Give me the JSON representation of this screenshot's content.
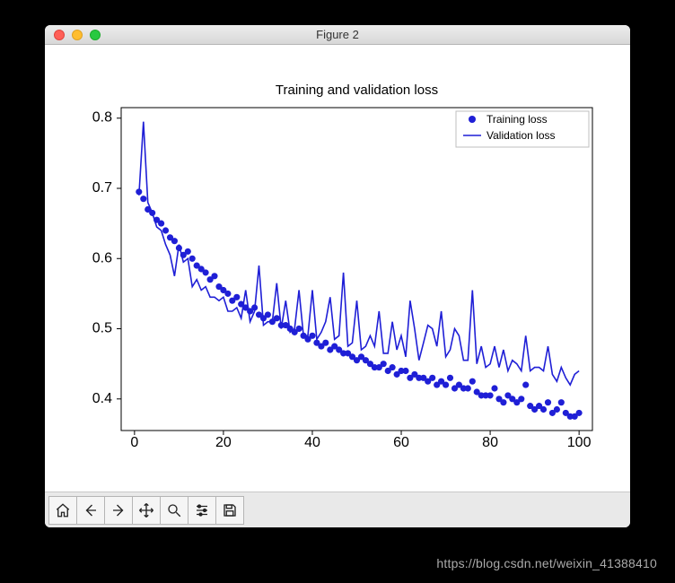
{
  "window": {
    "title": "Figure 2"
  },
  "watermark": "https://blog.csdn.net/weixin_41388410",
  "toolbar": {
    "buttons": [
      "home",
      "back",
      "forward",
      "pan",
      "zoom",
      "configure",
      "save"
    ]
  },
  "chart": {
    "type": "line+scatter",
    "title": "Training and validation loss",
    "title_fontsize": 15,
    "background_color": "#ffffff",
    "axes_color": "#000000",
    "label_fontsize": 11,
    "x": {
      "lim": [
        -3,
        103
      ],
      "ticks": [
        0,
        20,
        40,
        60,
        80,
        100
      ],
      "label": ""
    },
    "y": {
      "lim": [
        0.355,
        0.815
      ],
      "ticks": [
        0.4,
        0.5,
        0.6,
        0.7,
        0.8
      ],
      "label": ""
    },
    "legend": {
      "position": "upper-right",
      "border_color": "#bfbfbf",
      "bg_color": "#ffffff",
      "items": [
        {
          "label": "Training loss",
          "type": "scatter",
          "color": "#1f1fd6"
        },
        {
          "label": "Validation loss",
          "type": "line",
          "color": "#1f1fd6"
        }
      ]
    },
    "series": [
      {
        "name": "Training loss",
        "type": "scatter",
        "color": "#1f1fd6",
        "marker": "circle",
        "marker_size": 5,
        "x": [
          1,
          2,
          3,
          4,
          5,
          6,
          7,
          8,
          9,
          10,
          11,
          12,
          13,
          14,
          15,
          16,
          17,
          18,
          19,
          20,
          21,
          22,
          23,
          24,
          25,
          26,
          27,
          28,
          29,
          30,
          31,
          32,
          33,
          34,
          35,
          36,
          37,
          38,
          39,
          40,
          41,
          42,
          43,
          44,
          45,
          46,
          47,
          48,
          49,
          50,
          51,
          52,
          53,
          54,
          55,
          56,
          57,
          58,
          59,
          60,
          61,
          62,
          63,
          64,
          65,
          66,
          67,
          68,
          69,
          70,
          71,
          72,
          73,
          74,
          75,
          76,
          77,
          78,
          79,
          80,
          81,
          82,
          83,
          84,
          85,
          86,
          87,
          88,
          89,
          90,
          91,
          92,
          93,
          94,
          95,
          96,
          97,
          98,
          99,
          100
        ],
        "y": [
          0.695,
          0.685,
          0.67,
          0.665,
          0.655,
          0.65,
          0.64,
          0.63,
          0.625,
          0.615,
          0.605,
          0.61,
          0.6,
          0.59,
          0.585,
          0.58,
          0.57,
          0.575,
          0.56,
          0.555,
          0.55,
          0.54,
          0.545,
          0.535,
          0.53,
          0.525,
          0.53,
          0.52,
          0.515,
          0.52,
          0.51,
          0.515,
          0.505,
          0.505,
          0.5,
          0.495,
          0.5,
          0.49,
          0.485,
          0.49,
          0.48,
          0.475,
          0.48,
          0.47,
          0.475,
          0.47,
          0.465,
          0.465,
          0.46,
          0.455,
          0.46,
          0.455,
          0.45,
          0.445,
          0.445,
          0.45,
          0.44,
          0.445,
          0.435,
          0.44,
          0.44,
          0.43,
          0.435,
          0.43,
          0.43,
          0.425,
          0.43,
          0.42,
          0.425,
          0.42,
          0.43,
          0.415,
          0.42,
          0.415,
          0.415,
          0.425,
          0.41,
          0.405,
          0.405,
          0.405,
          0.415,
          0.4,
          0.395,
          0.405,
          0.4,
          0.395,
          0.4,
          0.42,
          0.39,
          0.385,
          0.39,
          0.385,
          0.395,
          0.38,
          0.385,
          0.395,
          0.38,
          0.375,
          0.375,
          0.38
        ]
      },
      {
        "name": "Validation loss",
        "type": "line",
        "color": "#1f1fd6",
        "line_width": 1.6,
        "x": [
          1,
          2,
          3,
          4,
          5,
          6,
          7,
          8,
          9,
          10,
          11,
          12,
          13,
          14,
          15,
          16,
          17,
          18,
          19,
          20,
          21,
          22,
          23,
          24,
          25,
          26,
          27,
          28,
          29,
          30,
          31,
          32,
          33,
          34,
          35,
          36,
          37,
          38,
          39,
          40,
          41,
          42,
          43,
          44,
          45,
          46,
          47,
          48,
          49,
          50,
          51,
          52,
          53,
          54,
          55,
          56,
          57,
          58,
          59,
          60,
          61,
          62,
          63,
          64,
          65,
          66,
          67,
          68,
          69,
          70,
          71,
          72,
          73,
          74,
          75,
          76,
          77,
          78,
          79,
          80,
          81,
          82,
          83,
          84,
          85,
          86,
          87,
          88,
          89,
          90,
          91,
          92,
          93,
          94,
          95,
          96,
          97,
          98,
          99,
          100
        ],
        "y": [
          0.69,
          0.795,
          0.68,
          0.665,
          0.645,
          0.64,
          0.62,
          0.605,
          0.575,
          0.62,
          0.595,
          0.6,
          0.56,
          0.57,
          0.555,
          0.56,
          0.545,
          0.545,
          0.54,
          0.545,
          0.525,
          0.525,
          0.53,
          0.515,
          0.555,
          0.51,
          0.525,
          0.59,
          0.505,
          0.51,
          0.51,
          0.565,
          0.5,
          0.54,
          0.495,
          0.5,
          0.555,
          0.49,
          0.49,
          0.555,
          0.485,
          0.495,
          0.51,
          0.545,
          0.485,
          0.49,
          0.58,
          0.475,
          0.48,
          0.54,
          0.47,
          0.475,
          0.49,
          0.475,
          0.525,
          0.465,
          0.465,
          0.51,
          0.47,
          0.49,
          0.46,
          0.54,
          0.5,
          0.455,
          0.48,
          0.505,
          0.5,
          0.475,
          0.525,
          0.46,
          0.47,
          0.5,
          0.49,
          0.455,
          0.455,
          0.555,
          0.45,
          0.475,
          0.445,
          0.45,
          0.475,
          0.445,
          0.47,
          0.44,
          0.455,
          0.45,
          0.44,
          0.49,
          0.44,
          0.445,
          0.445,
          0.44,
          0.475,
          0.435,
          0.425,
          0.445,
          0.43,
          0.42,
          0.435,
          0.44
        ]
      }
    ]
  }
}
